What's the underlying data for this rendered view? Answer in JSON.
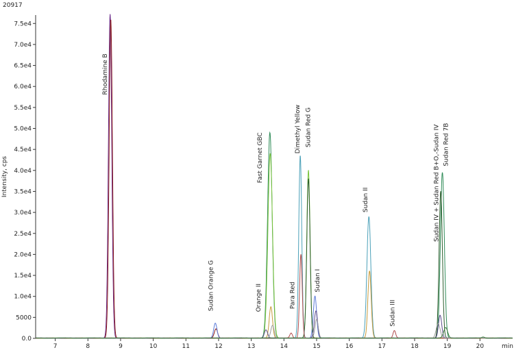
{
  "chart_data": {
    "type": "line",
    "corner_id": "20917",
    "xlabel": "min",
    "ylabel": "Intensity, cps",
    "xlim": [
      6.4,
      21.0
    ],
    "ylim": [
      0,
      77000
    ],
    "x_ticks": [
      7,
      8,
      9,
      10,
      11,
      12,
      13,
      14,
      15,
      16,
      17,
      18,
      19,
      20
    ],
    "x_tick_labels": [
      "7",
      "8",
      "9",
      "10",
      "11",
      "12",
      "13",
      "14",
      "15",
      "16",
      "17",
      "18",
      "19",
      "20"
    ],
    "y_ticks": [
      0,
      5000,
      10000,
      15000,
      20000,
      25000,
      30000,
      35000,
      40000,
      45000,
      50000,
      55000,
      60000,
      65000,
      70000,
      75000
    ],
    "y_tick_labels": [
      "0.0",
      "5000",
      "1.0e4",
      "1.5e4",
      "2.0e4",
      "2.5e4",
      "3.0e4",
      "3.5e4",
      "4.0e4",
      "4.5e4",
      "5.0e4",
      "5.5e4",
      "6.0e4",
      "6.5e4",
      "7.0e4",
      "7.5e4"
    ],
    "grid": false,
    "series": [
      {
        "color": "#6a2a8a",
        "peaks": [
          {
            "x": 8.68,
            "y": 77000,
            "w": 0.05
          },
          {
            "x": 8.62,
            "y": 1500,
            "w": 0.03
          }
        ]
      },
      {
        "color": "#8b1a1a",
        "peaks": [
          {
            "x": 8.7,
            "y": 76000,
            "w": 0.05
          },
          {
            "x": 11.92,
            "y": 2200,
            "w": 0.05
          }
        ]
      },
      {
        "color": "#5a7ad8",
        "peaks": [
          {
            "x": 11.9,
            "y": 3600,
            "w": 0.05
          },
          {
            "x": 14.95,
            "y": 10000,
            "w": 0.05
          }
        ]
      },
      {
        "color": "#2e8b57",
        "peaks": [
          {
            "x": 13.57,
            "y": 49000,
            "w": 0.07
          },
          {
            "x": 18.85,
            "y": 39500,
            "w": 0.06
          }
        ]
      },
      {
        "color": "#7ac43a",
        "peaks": [
          {
            "x": 13.58,
            "y": 44000,
            "w": 0.07
          },
          {
            "x": 14.75,
            "y": 40000,
            "w": 0.05
          }
        ]
      },
      {
        "color": "#2a5a2a",
        "peaks": [
          {
            "x": 14.75,
            "y": 38000,
            "w": 0.05
          },
          {
            "x": 18.8,
            "y": 35000,
            "w": 0.05
          }
        ]
      },
      {
        "color": "#4aa0b8",
        "peaks": [
          {
            "x": 14.5,
            "y": 43500,
            "w": 0.045
          },
          {
            "x": 16.6,
            "y": 29000,
            "w": 0.06
          }
        ]
      },
      {
        "color": "#c89a3a",
        "peaks": [
          {
            "x": 16.62,
            "y": 16000,
            "w": 0.05
          },
          {
            "x": 13.6,
            "y": 7500,
            "w": 0.05
          }
        ]
      },
      {
        "color": "#b04a4a",
        "peaks": [
          {
            "x": 14.52,
            "y": 20000,
            "w": 0.04
          },
          {
            "x": 14.22,
            "y": 1200,
            "w": 0.04
          },
          {
            "x": 17.38,
            "y": 1800,
            "w": 0.04
          }
        ]
      },
      {
        "color": "#5a4a8a",
        "peaks": [
          {
            "x": 14.98,
            "y": 6500,
            "w": 0.05
          },
          {
            "x": 18.78,
            "y": 5500,
            "w": 0.05
          },
          {
            "x": 13.45,
            "y": 2000,
            "w": 0.05
          }
        ]
      },
      {
        "color": "#9a9a9a",
        "peaks": [
          {
            "x": 15.0,
            "y": 4500,
            "w": 0.05
          },
          {
            "x": 18.72,
            "y": 3500,
            "w": 0.06
          },
          {
            "x": 13.65,
            "y": 3000,
            "w": 0.05
          }
        ]
      },
      {
        "color": "#3a7a3a",
        "peaks": [
          {
            "x": 18.95,
            "y": 2500,
            "w": 0.06
          },
          {
            "x": 20.1,
            "y": 300,
            "w": 0.05
          }
        ]
      }
    ],
    "annotations": [
      {
        "text": "Rhodamine B",
        "x": 8.58,
        "y": 58000
      },
      {
        "text": "Sudan Orange G",
        "x": 11.82,
        "y": 6500
      },
      {
        "text": "Orange II",
        "x": 13.28,
        "y": 6300
      },
      {
        "text": "Fast Garnet GBC",
        "x": 13.32,
        "y": 37000
      },
      {
        "text": "Para Red",
        "x": 14.32,
        "y": 7000
      },
      {
        "text": "Dimethyl Yellow",
        "x": 14.48,
        "y": 44000
      },
      {
        "text": "Sudan Red G",
        "x": 14.8,
        "y": 45500
      },
      {
        "text": "Sudan I",
        "x": 15.08,
        "y": 11000
      },
      {
        "text": "Sudan II",
        "x": 16.55,
        "y": 30000
      },
      {
        "text": "Sudan III",
        "x": 17.38,
        "y": 2800
      },
      {
        "text": "Sudan IV + Sudan Red B+O,-Sudan IV",
        "x": 18.72,
        "y": 23000
      },
      {
        "text": "Sudan Red 7B",
        "x": 19.02,
        "y": 41000
      }
    ]
  }
}
